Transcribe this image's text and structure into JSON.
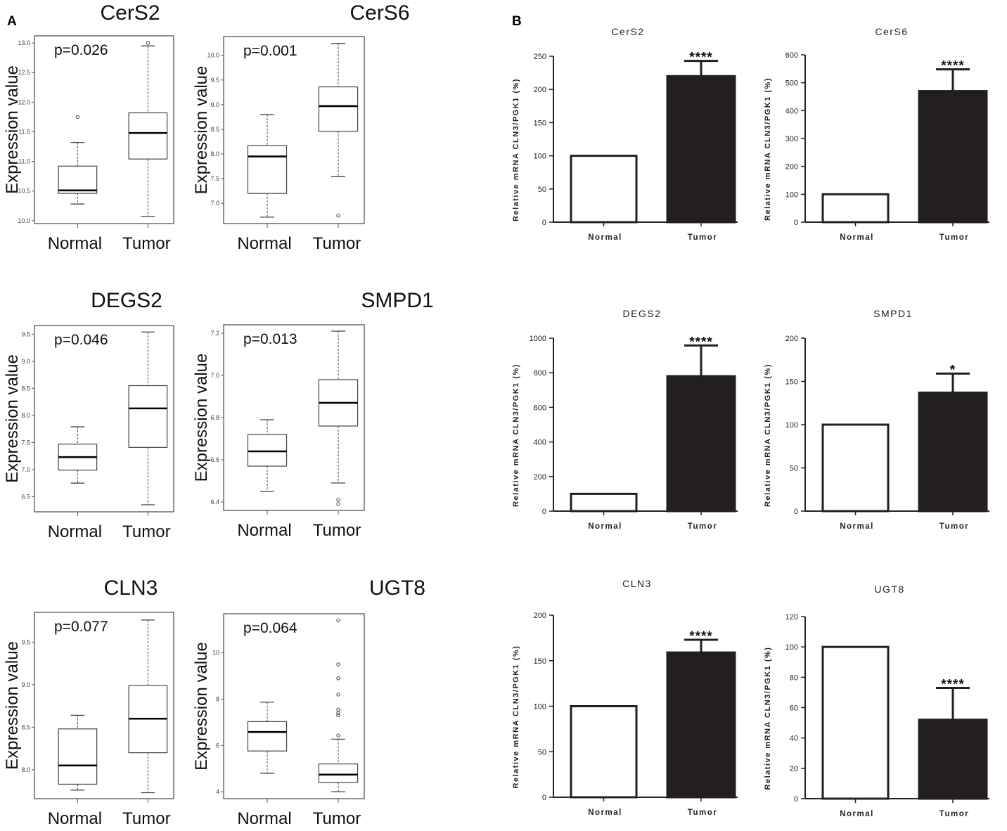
{
  "panels": {
    "a": "A",
    "b": "B"
  },
  "chart_data": [
    {
      "type": "box",
      "panel": "A",
      "title": "CerS2",
      "pvalue": "p=0.026",
      "ylabel": "Expression value",
      "ylim": [
        9.95,
        13.12
      ],
      "yticks": [
        "10.0",
        "10.5",
        "11.0",
        "11.5",
        "12.0",
        "12.5",
        "13.0"
      ],
      "categories": [
        "Normal",
        "Tumor"
      ],
      "groups": [
        {
          "low": 10.28,
          "q1": 10.46,
          "median": 10.51,
          "q3": 10.92,
          "high": 11.32,
          "outliers": [
            11.75
          ]
        },
        {
          "low": 10.07,
          "q1": 11.04,
          "median": 11.48,
          "q3": 11.82,
          "high": 12.95,
          "outliers": [
            13.0
          ]
        }
      ]
    },
    {
      "type": "box",
      "panel": "A",
      "title": "CerS6",
      "pvalue": "p=0.001",
      "ylabel": "Expression value",
      "ylim": [
        6.59,
        10.38
      ],
      "yticks": [
        "7.0",
        "7.5",
        "8.0",
        "8.5",
        "9.0",
        "9.5",
        "10.0"
      ],
      "categories": [
        "Normal",
        "Tumor"
      ],
      "groups": [
        {
          "low": 6.72,
          "q1": 7.2,
          "median": 7.95,
          "q3": 8.17,
          "high": 8.8,
          "outliers": []
        },
        {
          "low": 7.54,
          "q1": 8.46,
          "median": 8.97,
          "q3": 9.36,
          "high": 10.24,
          "outliers": [
            6.75
          ]
        }
      ]
    },
    {
      "type": "box",
      "panel": "A",
      "title": "DEGS2",
      "pvalue": "p=0.046",
      "ylabel": "Expression value",
      "ylim": [
        6.22,
        9.66
      ],
      "yticks": [
        "6.5",
        "7.0",
        "7.5",
        "8.0",
        "8.5",
        "9.0",
        "9.5"
      ],
      "categories": [
        "Normal",
        "Tumor"
      ],
      "groups": [
        {
          "low": 6.75,
          "q1": 6.99,
          "median": 7.23,
          "q3": 7.47,
          "high": 7.79,
          "outliers": []
        },
        {
          "low": 6.35,
          "q1": 7.41,
          "median": 8.13,
          "q3": 8.55,
          "high": 9.54,
          "outliers": []
        }
      ]
    },
    {
      "type": "box",
      "panel": "A",
      "title": "SMPD1",
      "pvalue": "p=0.013",
      "ylabel": "Expression value",
      "ylim": [
        6.36,
        7.24
      ],
      "yticks": [
        "6.4",
        "6.6",
        "6.8",
        "7.0",
        "7.2"
      ],
      "categories": [
        "Normal",
        "Tumor"
      ],
      "groups": [
        {
          "low": 6.45,
          "q1": 6.57,
          "median": 6.64,
          "q3": 6.72,
          "high": 6.79,
          "outliers": []
        },
        {
          "low": 6.49,
          "q1": 6.76,
          "median": 6.87,
          "q3": 6.98,
          "high": 7.21,
          "outliers": [
            6.41,
            6.39
          ]
        }
      ]
    },
    {
      "type": "box",
      "panel": "A",
      "title": "CLN3",
      "pvalue": "p=0.077",
      "ylabel": "Expression value",
      "ylim": [
        7.66,
        9.85
      ],
      "yticks": [
        "8.0",
        "8.5",
        "9.0",
        "9.5"
      ],
      "categories": [
        "Normal",
        "Tumor"
      ],
      "groups": [
        {
          "low": 7.76,
          "q1": 7.83,
          "median": 8.05,
          "q3": 8.48,
          "high": 8.64,
          "outliers": []
        },
        {
          "low": 7.73,
          "q1": 8.2,
          "median": 8.6,
          "q3": 8.99,
          "high": 9.76,
          "outliers": []
        }
      ]
    },
    {
      "type": "box",
      "panel": "A",
      "title": "UGT8",
      "pvalue": "p=0.064",
      "ylabel": "Expression value",
      "ylim": [
        3.7,
        11.69
      ],
      "yticks": [
        "4",
        "6",
        "8",
        "10"
      ],
      "categories": [
        "Normal",
        "Tumor"
      ],
      "groups": [
        {
          "low": 4.8,
          "q1": 5.76,
          "median": 6.58,
          "q3": 7.03,
          "high": 7.87,
          "outliers": []
        },
        {
          "low": 4.0,
          "q1": 4.4,
          "median": 4.74,
          "q3": 5.2,
          "high": 6.27,
          "outliers": [
            6.43,
            7.3,
            7.4,
            7.55,
            8.2,
            8.9,
            9.5,
            11.4
          ]
        }
      ]
    },
    {
      "type": "bar",
      "panel": "B",
      "title": "CerS2",
      "ylabel": "Relative mRNA CLN3/PGK1 (%)",
      "ylim": [
        0,
        250
      ],
      "yticks": [
        "0",
        "50",
        "100",
        "150",
        "200",
        "250"
      ],
      "categories": [
        "Normal",
        "Tumor"
      ],
      "values": [
        100,
        220
      ],
      "error_upper": [
        null,
        243
      ],
      "significance": "****"
    },
    {
      "type": "bar",
      "panel": "B",
      "title": "CerS6",
      "ylabel": "Relative mRNA CLN3/PGK1 (%)",
      "ylim": [
        0,
        600
      ],
      "yticks": [
        "0",
        "100",
        "200",
        "300",
        "400",
        "500",
        "600"
      ],
      "categories": [
        "Normal",
        "Tumor"
      ],
      "values": [
        100,
        470
      ],
      "error_upper": [
        null,
        548
      ],
      "significance": "****"
    },
    {
      "type": "bar",
      "panel": "B",
      "title": "DEGS2",
      "ylabel": "Relative mRNA CLN3/PGK1 (%)",
      "ylim": [
        0,
        1000
      ],
      "yticks": [
        "0",
        "200",
        "400",
        "600",
        "800",
        "1000"
      ],
      "categories": [
        "Normal",
        "Tumor"
      ],
      "values": [
        100,
        780
      ],
      "error_upper": [
        null,
        958
      ],
      "significance": "****"
    },
    {
      "type": "bar",
      "panel": "B",
      "title": "SMPD1",
      "ylabel": "Relative mRNA CLN3/PGK1 (%)",
      "ylim": [
        0,
        200
      ],
      "yticks": [
        "0",
        "50",
        "100",
        "150",
        "200"
      ],
      "categories": [
        "Normal",
        "Tumor"
      ],
      "values": [
        100,
        137
      ],
      "error_upper": [
        null,
        159
      ],
      "significance": "*"
    },
    {
      "type": "bar",
      "panel": "B",
      "title": "CLN3",
      "ylabel": "Relative mRNA CLN3/PGK1 (%)",
      "ylim": [
        0,
        200
      ],
      "yticks": [
        "0",
        "50",
        "100",
        "150",
        "200"
      ],
      "categories": [
        "Normal",
        "Tumor"
      ],
      "values": [
        100,
        159
      ],
      "error_upper": [
        null,
        173
      ],
      "significance": "****"
    },
    {
      "type": "bar",
      "panel": "B",
      "title": "UGT8",
      "ylabel": "Relative mRNA CLN3/PGK1 (%)",
      "ylim": [
        0,
        120
      ],
      "yticks": [
        "0",
        "20",
        "40",
        "60",
        "80",
        "100",
        "120"
      ],
      "categories": [
        "Normal",
        "Tumor"
      ],
      "values": [
        100,
        52
      ],
      "error_upper": [
        null,
        73
      ],
      "significance": "****"
    }
  ],
  "colors": {
    "bar_normal": "#ffffff",
    "bar_tumor": "#231f20",
    "line": "#222222"
  }
}
